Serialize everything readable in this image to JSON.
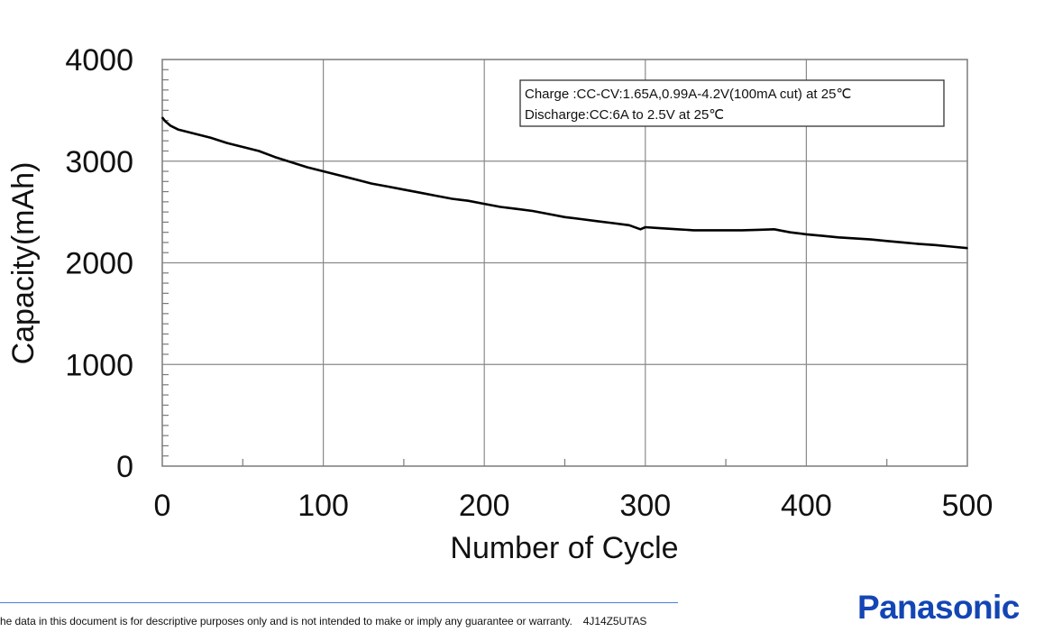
{
  "chart_data": {
    "type": "line",
    "title": "",
    "xlabel": "Number of Cycle",
    "ylabel": "Capacity(mAh)",
    "xlim": [
      0,
      500
    ],
    "ylim": [
      0,
      4000
    ],
    "x_ticks": [
      0,
      100,
      200,
      300,
      400,
      500
    ],
    "x_tick_labels": [
      "0",
      "100",
      "200",
      "300",
      "400",
      "500"
    ],
    "y_ticks": [
      0,
      1000,
      2000,
      3000,
      4000
    ],
    "y_tick_labels": [
      "0",
      "1000",
      "2000",
      "3000",
      "4000"
    ],
    "x_minor_step": 50,
    "y_minor_step": 100,
    "grid": true,
    "annotation": {
      "lines": [
        "Charge :CC-CV:1.65A,0.99A-4.2V(100mA cut) at 25℃",
        "Discharge:CC:6A to 2.5V at 25℃"
      ],
      "placement": "top-right"
    },
    "series": [
      {
        "name": "Capacity",
        "color": "#000000",
        "x": [
          0,
          2,
          5,
          10,
          20,
          30,
          40,
          50,
          60,
          70,
          80,
          90,
          100,
          110,
          120,
          130,
          140,
          150,
          160,
          170,
          180,
          190,
          200,
          210,
          220,
          230,
          240,
          250,
          260,
          270,
          280,
          290,
          297,
          300,
          310,
          320,
          330,
          340,
          350,
          360,
          370,
          380,
          390,
          400,
          410,
          420,
          430,
          440,
          450,
          460,
          470,
          480,
          490,
          500
        ],
        "values": [
          3430,
          3390,
          3350,
          3310,
          3270,
          3230,
          3180,
          3140,
          3100,
          3040,
          2990,
          2940,
          2900,
          2860,
          2820,
          2780,
          2750,
          2720,
          2690,
          2660,
          2630,
          2610,
          2580,
          2550,
          2530,
          2510,
          2480,
          2450,
          2430,
          2410,
          2390,
          2370,
          2330,
          2350,
          2340,
          2330,
          2320,
          2320,
          2320,
          2320,
          2325,
          2330,
          2300,
          2280,
          2265,
          2250,
          2240,
          2230,
          2215,
          2200,
          2185,
          2175,
          2160,
          2145
        ]
      }
    ]
  },
  "footer": {
    "disclaimer": "he data in this document is for descriptive purposes only and is not intended to make or imply any guarantee or warranty.",
    "doc_code": "4J14Z5UTAS",
    "brand": "Panasonic",
    "brand_color": "#1346b4",
    "rule_color": "#4a7fd6"
  }
}
